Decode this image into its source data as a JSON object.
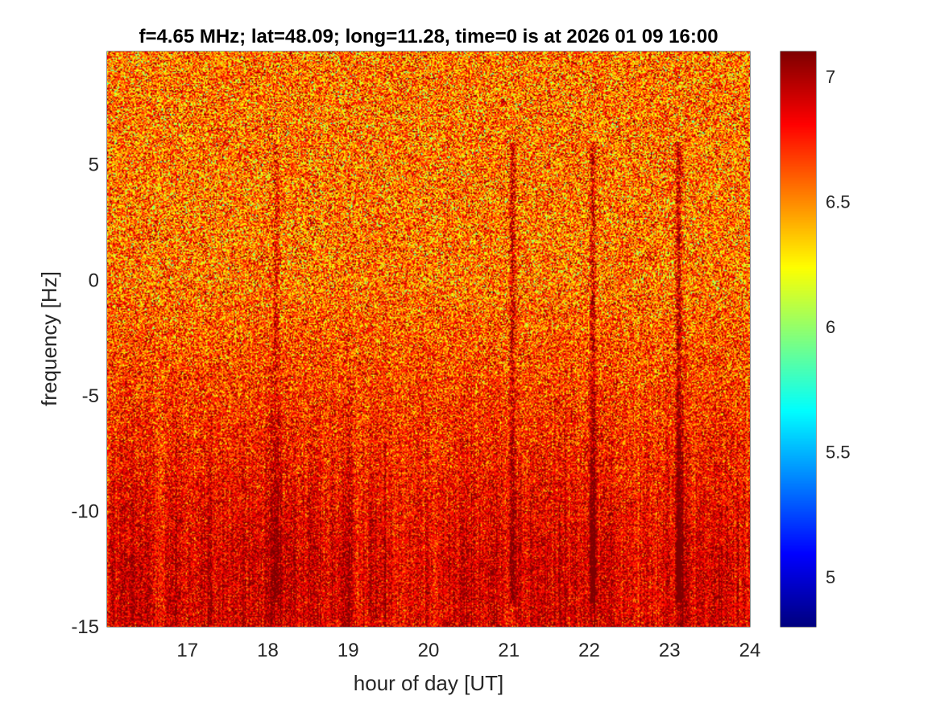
{
  "chart_data": {
    "type": "heatmap",
    "title": "f=4.65 MHz;  lat=48.09; long=11.28, time=0 is at 2026 01 09 16:00",
    "xlabel": "hour of day [UT]",
    "ylabel": "frequency [Hz]",
    "xlim": [
      16.0,
      24.0
    ],
    "ylim": [
      -15,
      9.9
    ],
    "xticks": [
      17,
      18,
      19,
      20,
      21,
      22,
      23,
      24
    ],
    "yticks": [
      -15,
      -10,
      -5,
      0,
      5
    ],
    "xtick_labels": [
      "17",
      "18",
      "19",
      "20",
      "21",
      "22",
      "23",
      "24"
    ],
    "ytick_labels": [
      "-15",
      "-10",
      "-5",
      "0",
      "5"
    ],
    "colorbar": {
      "colormap": "jet",
      "clim": [
        4.8,
        7.1
      ],
      "ticks": [
        5,
        5.5,
        6,
        6.5,
        7
      ],
      "tick_labels": [
        "5",
        "5.5",
        "6",
        "6.5",
        "7"
      ],
      "location": "right"
    },
    "streaks": [
      {
        "hour": 18.1,
        "strength": 0.7
      },
      {
        "hour": 21.05,
        "strength": 1.0
      },
      {
        "hour": 22.05,
        "strength": 1.0
      },
      {
        "hour": 23.12,
        "strength": 1.2
      }
    ],
    "value_low_band_mean": 6.9,
    "value_high_band_mean": 6.55
  }
}
